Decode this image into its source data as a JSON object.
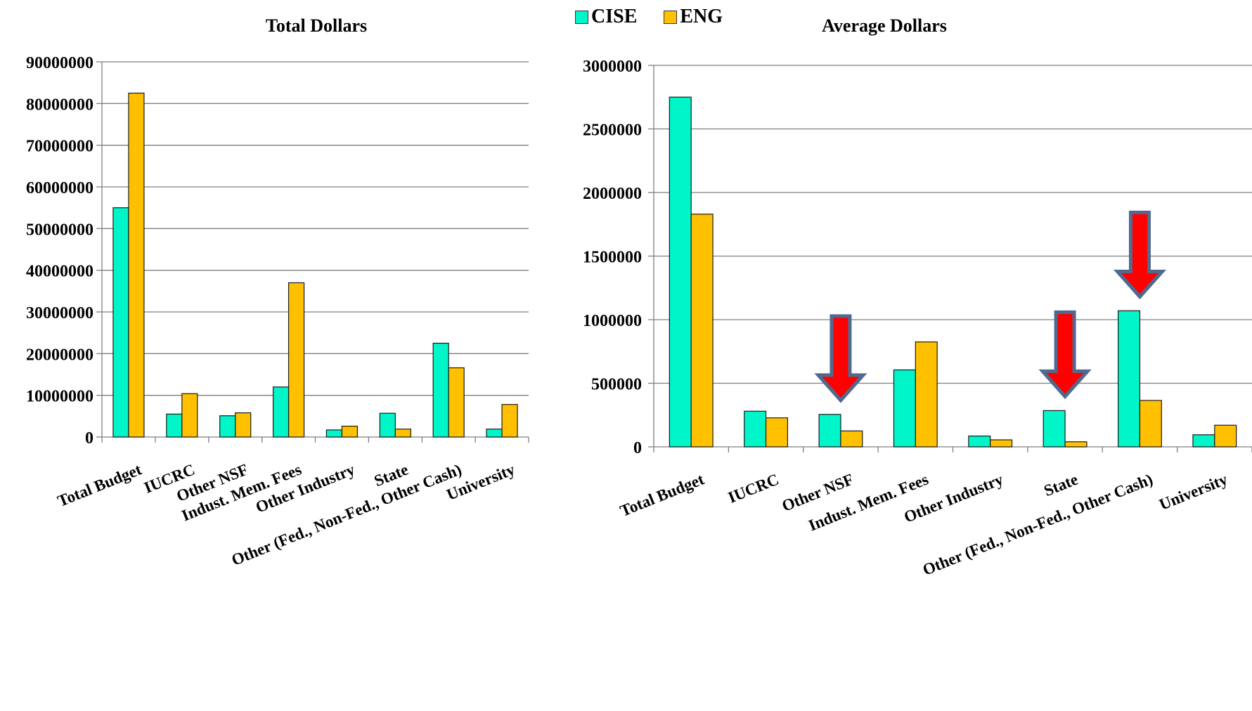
{
  "legend": [
    {
      "name": "CISE",
      "color": "#00f5c8"
    },
    {
      "name": "ENG",
      "color": "#ffc000"
    }
  ],
  "arrow_color": "#ff0000",
  "arrow_outline": "#4f6a8f",
  "chart_data": [
    {
      "type": "bar",
      "title": "Total Dollars",
      "categories": [
        "Total Budget",
        "IUCRC",
        "Other NSF",
        "Indust. Mem. Fees",
        "Other Industry",
        "State",
        "Other (Fed., Non-Fed., Other Cash)",
        "University"
      ],
      "series": [
        {
          "name": "CISE",
          "values": [
            55000000,
            5500000,
            5100000,
            12000000,
            1700000,
            5700000,
            22500000,
            1900000
          ]
        },
        {
          "name": "ENG",
          "values": [
            82500000,
            10400000,
            5800000,
            37000000,
            2600000,
            1900000,
            16600000,
            7800000
          ]
        }
      ],
      "ylim": [
        0,
        90000000
      ],
      "yticks": [
        "0",
        "10000000",
        "20000000",
        "30000000",
        "40000000",
        "50000000",
        "60000000",
        "70000000",
        "80000000",
        "90000000"
      ],
      "grid": true,
      "legend_position": "top-center"
    },
    {
      "type": "bar",
      "title": "Average Dollars",
      "categories": [
        "Total Budget",
        "IUCRC",
        "Other NSF",
        "Indust. Mem. Fees",
        "Other Industry",
        "State",
        "Other (Fed., Non-Fed., Other Cash)",
        "University"
      ],
      "series": [
        {
          "name": "CISE",
          "values": [
            2750000,
            280000,
            255000,
            605000,
            85000,
            285000,
            1070000,
            95000
          ]
        },
        {
          "name": "ENG",
          "values": [
            1830000,
            228000,
            125000,
            825000,
            55000,
            40000,
            365000,
            170000
          ]
        }
      ],
      "ylim": [
        0,
        3000000
      ],
      "yticks": [
        "0",
        "500000",
        "1000000",
        "1500000",
        "2000000",
        "2500000",
        "3000000"
      ],
      "grid": true,
      "highlighted_categories": [
        "Other NSF",
        "State",
        "Other (Fed., Non-Fed., Other Cash)"
      ]
    }
  ]
}
